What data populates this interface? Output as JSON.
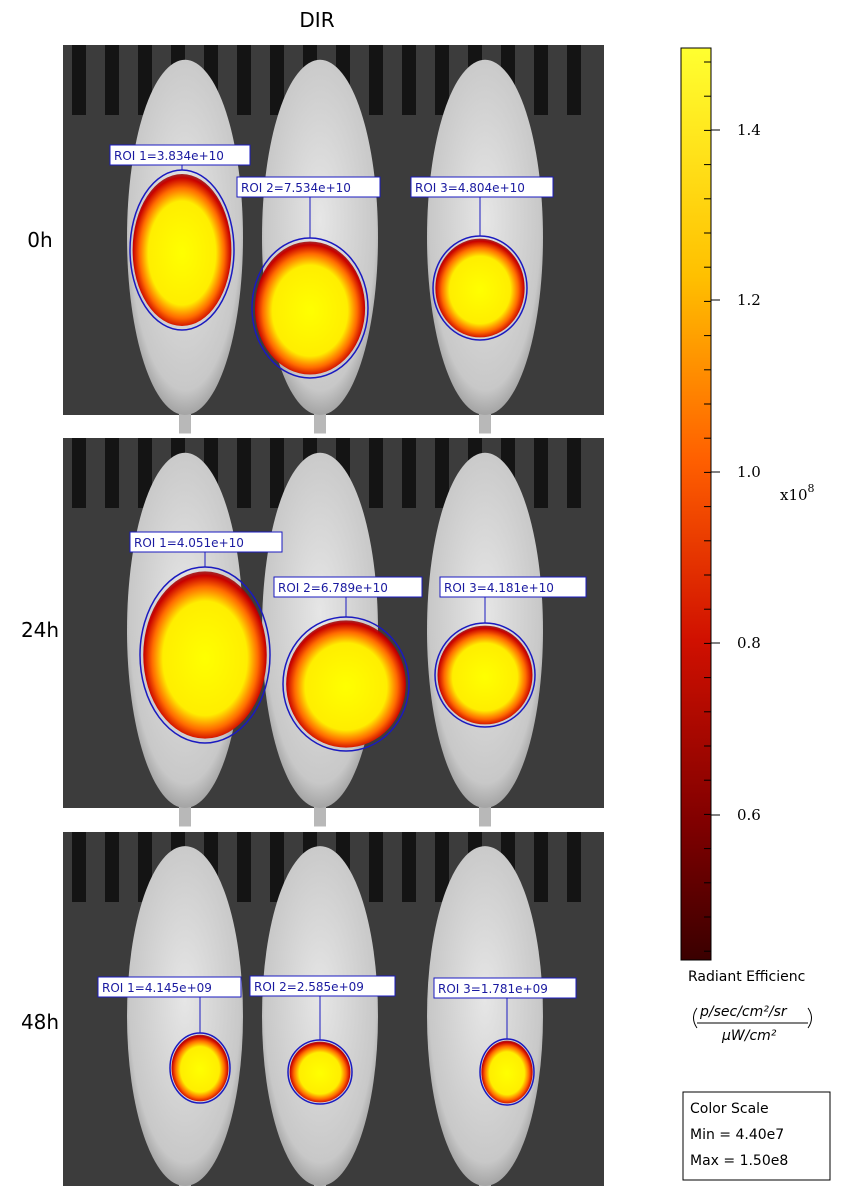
{
  "title": "DIR",
  "panels": [
    {
      "time": "0h",
      "rois": [
        "ROI 1=3.834e+10",
        "ROI 2=7.534e+10",
        "ROI 3=4.804e+10"
      ]
    },
    {
      "time": "24h",
      "rois": [
        "ROI 1=4.051e+10",
        "ROI 2=6.789e+10",
        "ROI 3=4.181e+10"
      ]
    },
    {
      "time": "48h",
      "rois": [
        "ROI 1=4.145e+09",
        "ROI 2=2.585e+09",
        "ROI 3=1.781e+09"
      ]
    }
  ],
  "color_bar": {
    "ticks": [
      "1.4",
      "1.2",
      "1.0",
      "0.8",
      "0.6"
    ],
    "multiplier": {
      "base": "x10",
      "exponent": "8"
    },
    "label": "Radiant Efficienc",
    "unit": {
      "numerator": "p/sec/cm²/sr",
      "denominator": "μW/cm²"
    }
  },
  "color_scale_box": {
    "title": "Color Scale",
    "min": "Min = 4.40e7",
    "max": "Max = 1.50e8"
  }
}
